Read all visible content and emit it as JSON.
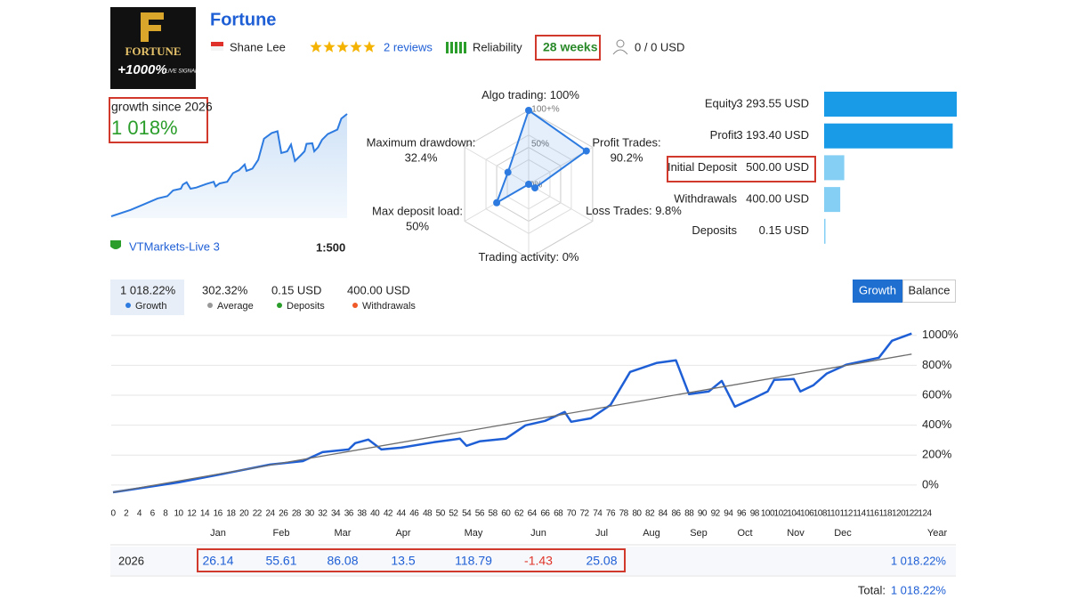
{
  "header": {
    "logo": {
      "name": "FORTUNE",
      "badge": "+1000%",
      "tag": "LIVE SIGNAL"
    },
    "title": "Fortune",
    "author": "Shane Lee",
    "reviews": "2 reviews",
    "reliability": "Reliability",
    "weeks": "28 weeks",
    "subscribers": "0 / 0 USD"
  },
  "summary": {
    "label": "growth since 2026",
    "value": "1 018%",
    "broker": "VTMarkets-Live 3",
    "leverage": "1:500"
  },
  "radar": {
    "type": "radar",
    "ticks": [
      {
        "value": 100,
        "label": "100+%"
      },
      {
        "value": 50,
        "label": "50%"
      },
      {
        "value": 0,
        "label": "0%"
      }
    ],
    "axes": [
      {
        "name": "Algo trading:",
        "value": 100,
        "value_label": "100%"
      },
      {
        "name": "Profit Trades:",
        "value": 90.2,
        "value_label": "90.2%"
      },
      {
        "name": "Loss Trades:",
        "value": 9.8,
        "value_label": "9.8%"
      },
      {
        "name": "Trading activity:",
        "value": 0,
        "value_label": "0%"
      },
      {
        "name": "Max deposit load:",
        "value": 50,
        "value_label": "50%"
      },
      {
        "name": "Maximum drawdown:",
        "value": 32.4,
        "value_label": "32.4%"
      }
    ]
  },
  "balances": [
    {
      "name": "Equity",
      "value": 3293.55,
      "value_label": "3 293.55 USD"
    },
    {
      "name": "Profit",
      "value": 3193.4,
      "value_label": "3 193.40 USD"
    },
    {
      "name": "Initial Deposit",
      "value": 500.0,
      "value_label": "500.00 USD"
    },
    {
      "name": "Withdrawals",
      "value": 400.0,
      "value_label": "400.00 USD"
    },
    {
      "name": "Deposits",
      "value": 0.15,
      "value_label": "0.15 USD"
    }
  ],
  "stats": [
    {
      "value": "1 018.22%",
      "name": "Growth",
      "color": "#2d7be0"
    },
    {
      "value": "302.32%",
      "name": "Average",
      "color": "#999999"
    },
    {
      "value": "0.15 USD",
      "name": "Deposits",
      "color": "#2a9d2a"
    },
    {
      "value": "400.00 USD",
      "name": "Withdrawals",
      "color": "#f05a28"
    }
  ],
  "buttons": [
    "Growth",
    "Balance"
  ],
  "chart_data": {
    "type": "line",
    "series": [
      {
        "name": "Growth",
        "color": "#1f5fd6",
        "x": [
          0,
          10,
          17,
          24,
          29,
          32,
          36,
          37,
          39,
          41,
          44,
          49,
          53,
          54,
          56,
          60,
          63,
          66,
          69,
          70,
          73,
          76,
          79,
          83,
          86,
          88,
          91,
          93,
          95,
          98,
          100,
          101,
          104,
          105,
          107,
          109,
          112,
          117,
          119,
          122
        ],
        "values": [
          -48,
          18,
          77,
          137,
          160,
          220,
          238,
          280,
          304,
          238,
          250,
          286,
          310,
          262,
          292,
          310,
          399,
          429,
          488,
          423,
          446,
          536,
          756,
          815,
          833,
          607,
          625,
          696,
          524,
          583,
          625,
          702,
          708,
          625,
          667,
          744,
          804,
          851,
          964,
          1012
        ]
      },
      {
        "color": "#6e6e6e",
        "x": [
          0,
          122
        ],
        "values": [
          -48,
          875
        ]
      }
    ],
    "xlim": [
      0,
      124
    ],
    "ylim": [
      -60,
      1040
    ],
    "xticks": [
      0,
      2,
      4,
      6,
      8,
      10,
      12,
      14,
      16,
      18,
      20,
      22,
      24,
      26,
      28,
      30,
      32,
      34,
      36,
      38,
      40,
      42,
      44,
      46,
      48,
      50,
      52,
      54,
      56,
      58,
      60,
      62,
      64,
      66,
      68,
      70,
      72,
      74,
      76,
      78,
      80,
      82,
      84,
      86,
      88,
      90,
      92,
      94,
      96,
      98,
      100,
      102,
      104,
      106,
      108,
      110,
      112,
      114,
      116,
      118,
      120,
      122,
      124
    ],
    "yticks": [
      {
        "value": 0,
        "label": "0%"
      },
      {
        "value": 200,
        "label": "200%"
      },
      {
        "value": 400,
        "label": "400%"
      },
      {
        "value": 600,
        "label": "600%"
      },
      {
        "value": 800,
        "label": "800%"
      },
      {
        "value": 1000,
        "label": "1000%"
      }
    ],
    "grid": true,
    "months": [
      "Jan",
      "Feb",
      "Mar",
      "Apr",
      "May",
      "Jun",
      "Jul",
      "Aug",
      "Sep",
      "Oct",
      "Nov",
      "Dec"
    ],
    "year_label": "Year"
  },
  "yearly": {
    "year": "2026",
    "values": [
      26.14,
      55.61,
      86.08,
      13.5,
      118.79,
      -1.43,
      25.08
    ],
    "year_total": "1 018.22%",
    "total_label": "Total:",
    "total": "1 018.22%"
  }
}
